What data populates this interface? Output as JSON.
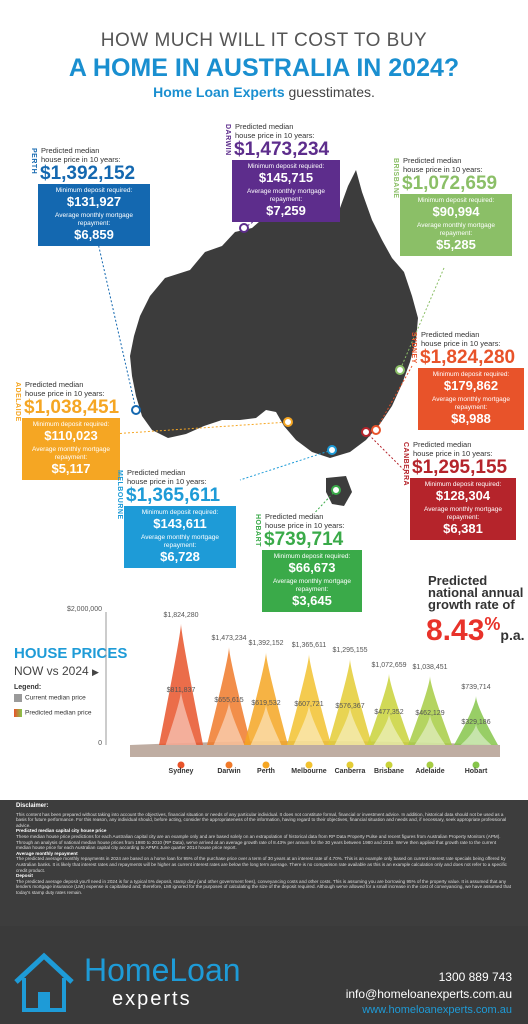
{
  "header": {
    "line1": "HOW MUCH WILL IT COST TO BUY",
    "line2": "A HOME IN AUSTRALIA IN 2024?",
    "brand": "Home Loan Experts",
    "brand_suffix": " guesstimates."
  },
  "cards": [
    {
      "city": "PERTH",
      "color": "#1468b0",
      "hdr1": "Predicted median",
      "hdr2": "house price in 10 years:",
      "price": "$1,392,152",
      "dep_label": "Minimum deposit required:",
      "deposit": "$131,927",
      "rep_label": "Average monthly mortgage repayment:",
      "repayment": "$6,859"
    },
    {
      "city": "DARWIN",
      "color": "#5d2d8c",
      "hdr1": "Predicted median",
      "hdr2": "house price in 10 years:",
      "price": "$1,473,234",
      "dep_label": "Minimum deposit required:",
      "deposit": "$145,715",
      "rep_label": "Average monthly mortgage repayment:",
      "repayment": "$7,259"
    },
    {
      "city": "BRISBANE",
      "color": "#8bbf67",
      "hdr1": "Predicted median",
      "hdr2": "house price in 10 years:",
      "price": "$1,072,659",
      "dep_label": "Minimum deposit required:",
      "deposit": "$90,994",
      "rep_label": "Average monthly mortgage repayment:",
      "repayment": "$5,285"
    },
    {
      "city": "SYDNEY",
      "color": "#e8532a",
      "hdr1": "Predicted median",
      "hdr2": "house price in 10 years:",
      "price": "$1,824,280",
      "dep_label": "Minimum deposit required:",
      "deposit": "$179,862",
      "rep_label": "Average monthly mortgage repayment:",
      "repayment": "$8,988"
    },
    {
      "city": "ADELAIDE",
      "color": "#f5a623",
      "hdr1": "Predicted median",
      "hdr2": "house price in 10 years:",
      "price": "$1,038,451",
      "dep_label": "Minimum deposit required:",
      "deposit": "$110,023",
      "rep_label": "Average monthly mortgage repayment:",
      "repayment": "$5,117"
    },
    {
      "city": "MELBOURNE",
      "color": "#1e9bd7",
      "hdr1": "Predicted median",
      "hdr2": "house price in 10 years:",
      "price": "$1,365,611",
      "dep_label": "Minimum deposit required:",
      "deposit": "$143,611",
      "rep_label": "Average monthly mortgage repayment:",
      "repayment": "$6,728"
    },
    {
      "city": "CANBERRA",
      "color": "#b5242b",
      "hdr1": "Predicted median",
      "hdr2": "house price in 10 years:",
      "price": "$1,295,155",
      "dep_label": "Minimum deposit required:",
      "deposit": "$128,304",
      "rep_label": "Average monthly mortgage repayment:",
      "repayment": "$6,381"
    },
    {
      "city": "HOBART",
      "color": "#3aaa49",
      "hdr1": "Predicted median",
      "hdr2": "house price in 10 years:",
      "price": "$739,714",
      "dep_label": "Minimum deposit required:",
      "deposit": "$66,673",
      "rep_label": "Average monthly mortgage repayment:",
      "repayment": "$3,645"
    }
  ],
  "growth": {
    "line1": "Predicted",
    "line2": "national annual",
    "line3": "growth rate of",
    "rate": "8.43",
    "pct": "%",
    "pa": "p.a."
  },
  "section": {
    "title": "HOUSE PRICES",
    "subtitle": "NOW vs 2024",
    "legend_title": "Legend:",
    "legend_current": "Current median price",
    "legend_predicted": "Predicted median price"
  },
  "chart_data": {
    "type": "area",
    "categories": [
      "Sydney",
      "Darwin",
      "Perth",
      "Melbourne",
      "Canberra",
      "Brisbane",
      "Adelaide",
      "Hobart"
    ],
    "series": [
      {
        "name": "Predicted median price",
        "values": [
          1824280,
          1473234,
          1392152,
          1365611,
          1295155,
          1072659,
          1038451,
          739714
        ],
        "labels": [
          "$1,824,280",
          "$1,473,234",
          "$1,392,152",
          "$1,365,611",
          "$1,295,155",
          "$1,072,659",
          "$1,038,451",
          "$739,714"
        ]
      },
      {
        "name": "Current median price",
        "values": [
          811837,
          655615,
          619532,
          607721,
          576367,
          477352,
          462129,
          329186
        ],
        "labels": [
          "$811,837",
          "$655,615",
          "$619,532",
          "$607,721",
          "$576,367",
          "$477,352",
          "$462,129",
          "$329,186"
        ]
      }
    ],
    "ylim": [
      0,
      2000000
    ],
    "ytick_labels": [
      "$2,000,000",
      "0"
    ],
    "colors": [
      "#e8532a",
      "#f07a2a",
      "#f5a623",
      "#f2c230",
      "#e4cc35",
      "#c9d23a",
      "#a7cd44",
      "#86c54b"
    ]
  },
  "disclaimer": {
    "title": "Disclaimer:",
    "p1": "This content has been prepared without taking into account the objectives, financial situation or needs of any particular individual. It does not constitute formal, financial or investment advice. In addition, historical data should not be used as a basis for future performance. For this reason, any individual should, before acting, consider the appropriateness of the information, having regard to their objectives, financial situation and needs and, if necessary, seek appropriate professional advice.",
    "t2": "Predicted median capital city house price",
    "p2": "These median house price predictions for each Australian capital city are an example only and are based solely on an extrapolation of historical data from RP Data Property Pulse and recent figures from Australian Property Monitors (APM). Through an analysis of national median house prices from 1980 to 2010 (RP Data), we've arrived at an average growth rate of 8.43% per annum for the 30 years between 1980 and 2010. We've then applied that growth rate to the current median house price for each Australian capital city according to APM's June quarter 2014 house price report.",
    "t3": "Average monthly repayment",
    "p3": "The predicted average monthly repayments in 2024 are based on a home loan for 95% of the purchase price over a term of 30 years at an interest rate of 4.70%. This is an example only based on current interest rate specials being offered by Australian banks. It is likely that interest rates and repayments will be higher as current interest rates are below the long term average. There is no comparison rate available as this is an example calculation only and does not refer to a specific credit product.",
    "t4": "Deposit",
    "p4": "The predicted average deposit you'll need in 2024 is for a typical 5% deposit, stamp duty (and other government fees), conveyancing costs and other costs. This is assuming you are borrowing 95% of the property value. It is assumed that any lenders mortgage insurance (LMI) expense is capitalised and; therefore, LMI ignored for the purposes of calculating the size of the deposit required. Although we've allowed for a small increase in the cost of conveyancing, we have assumed that today's stamp duty rates remain."
  },
  "footer": {
    "logo_top": "HomeLoan",
    "logo_bottom": "experts",
    "phone": "1300 889 743",
    "email": "info@homeloanexperts.com.au",
    "web": "www.homeloanexperts.com.au"
  }
}
